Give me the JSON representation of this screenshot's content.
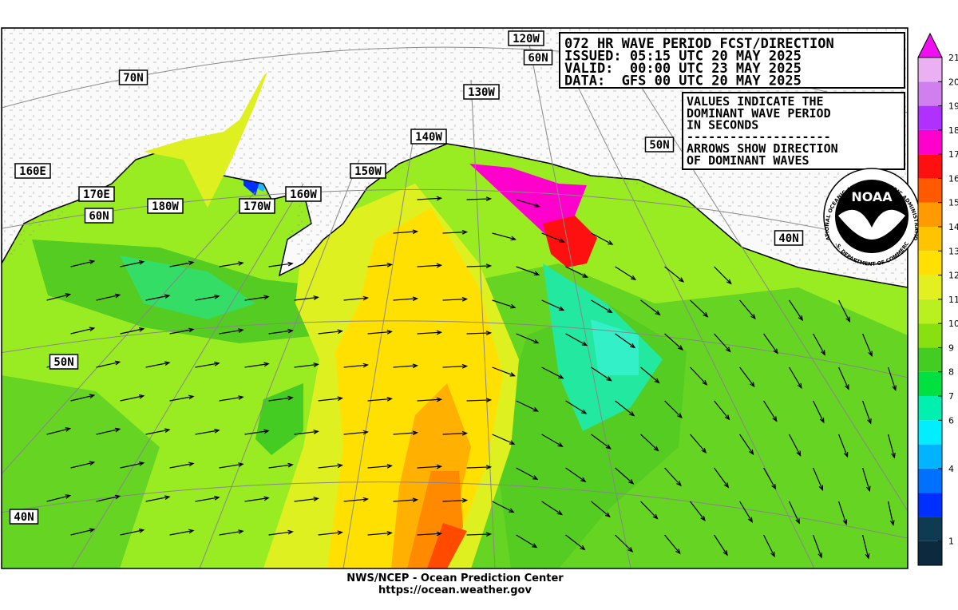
{
  "header": {
    "lines": [
      "072 HR WAVE PERIOD FCST/DIRECTION",
      "ISSUED: 05:15 UTC 20 MAY 2025",
      "VALID:  00:00 UTC 23 MAY 2025",
      "DATA:  GFS 00 UTC 20 MAY 2025"
    ]
  },
  "notes": {
    "lines": [
      "VALUES INDICATE THE",
      "DOMINANT WAVE PERIOD",
      "IN SECONDS",
      "--------------------",
      "ARROWS SHOW DIRECTION",
      "OF DOMINANT WAVES"
    ]
  },
  "grid_labels": [
    "120W",
    "60N",
    "70N",
    "130W",
    "140W",
    "50N",
    "160E",
    "150W",
    "170E",
    "160W",
    "60N",
    "180W",
    "170W",
    "40N",
    "50N",
    "40N"
  ],
  "logo": {
    "name": "NOAA",
    "ring": "NATIONAL OCEANIC AND ATMOSPHERIC ADMINISTRATION",
    "ring_bottom": "U.S. DEPARTMENT OF COMMERCE"
  },
  "colorbar": {
    "ticks": [
      21,
      20,
      19,
      18,
      17,
      16,
      15,
      14,
      13,
      12,
      11,
      10,
      9,
      8,
      7,
      6,
      4,
      1
    ],
    "range": [
      0,
      21
    ],
    "colors": [
      "#0b2a3d",
      "#0f3b52",
      "#0030ff",
      "#0070ff",
      "#00b4ff",
      "#00eeff",
      "#00f0b0",
      "#00e040",
      "#44cc22",
      "#88e011",
      "#b8f020",
      "#e2f020",
      "#ffe000",
      "#ffc400",
      "#ff9a00",
      "#ff5a00",
      "#ff1010",
      "#ff00cc",
      "#b030ff",
      "#d080ee",
      "#eab0f2"
    ],
    "over_color": "#ee10ee"
  },
  "footer": {
    "lines": [
      "NWS/NCEP - Ocean Prediction Center",
      "https://ocean.weather.gov"
    ]
  }
}
